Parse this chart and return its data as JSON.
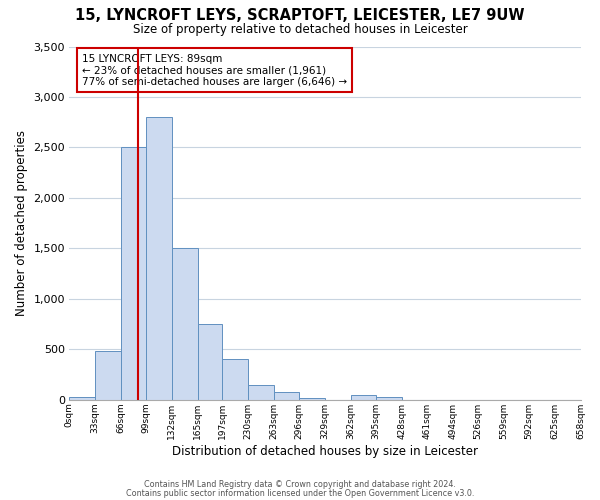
{
  "title": "15, LYNCROFT LEYS, SCRAPTOFT, LEICESTER, LE7 9UW",
  "subtitle": "Size of property relative to detached houses in Leicester",
  "xlabel": "Distribution of detached houses by size in Leicester",
  "ylabel": "Number of detached properties",
  "bin_edges": [
    0,
    33,
    66,
    99,
    132,
    165,
    197,
    230,
    263,
    296,
    329,
    362,
    395,
    428,
    461,
    494,
    526,
    559,
    592,
    625,
    658
  ],
  "bar_heights": [
    25,
    480,
    2500,
    2800,
    1500,
    750,
    400,
    150,
    80,
    20,
    0,
    50,
    25,
    0,
    0,
    0,
    0,
    0,
    0,
    0
  ],
  "bar_color": "#ccdaf0",
  "bar_edgecolor": "#6090c0",
  "vline_x": 89,
  "vline_color": "#cc0000",
  "ylim": [
    0,
    3500
  ],
  "xlim": [
    0,
    658
  ],
  "annotation_text": "15 LYNCROFT LEYS: 89sqm\n← 23% of detached houses are smaller (1,961)\n77% of semi-detached houses are larger (6,646) →",
  "footer_line1": "Contains HM Land Registry data © Crown copyright and database right 2024.",
  "footer_line2": "Contains public sector information licensed under the Open Government Licence v3.0.",
  "tick_labels": [
    "0sqm",
    "33sqm",
    "66sqm",
    "99sqm",
    "132sqm",
    "165sqm",
    "197sqm",
    "230sqm",
    "263sqm",
    "296sqm",
    "329sqm",
    "362sqm",
    "395sqm",
    "428sqm",
    "461sqm",
    "494sqm",
    "526sqm",
    "559sqm",
    "592sqm",
    "625sqm",
    "658sqm"
  ],
  "ytick_labels": [
    "0",
    "500",
    "1,000",
    "1,500",
    "2,000",
    "2,500",
    "3,000",
    "3,500"
  ],
  "ytick_values": [
    0,
    500,
    1000,
    1500,
    2000,
    2500,
    3000,
    3500
  ],
  "background_color": "#ffffff",
  "grid_color": "#c8d4e0"
}
